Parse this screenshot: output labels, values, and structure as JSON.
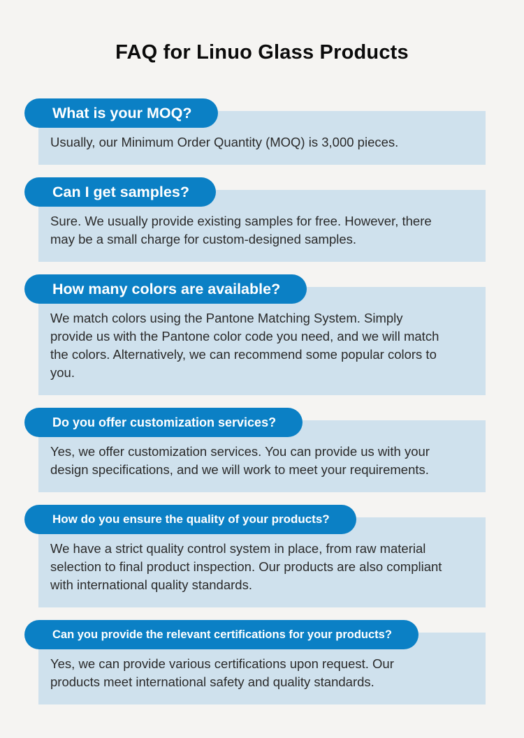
{
  "page": {
    "title": "FAQ for Linuo Glass Products"
  },
  "colors": {
    "page_background": "#f5f4f2",
    "question_pill_blue": "#0b80c5",
    "answer_box_blue": "#cfe1ed",
    "question_text": "#ffffff",
    "answer_text": "#2a2a2a",
    "title_text": "#0b0b0b"
  },
  "faqs": [
    {
      "question": "What is your MOQ?",
      "answer": "Usually, our Minimum Order Quantity (MOQ) is 3,000 pieces."
    },
    {
      "question": "Can I get samples?",
      "answer": "Sure. We usually provide existing samples for free. However, there\nmay be a small charge for custom-designed samples."
    },
    {
      "question": "How many colors are available?",
      "answer": "We match colors using the Pantone Matching System. Simply\nprovide us with the Pantone color code you need, and we will match\nthe colors. Alternatively, we can recommend some popular colors to\nyou."
    },
    {
      "question": "Do you offer customization services?",
      "answer": "Yes, we offer customization services. You can provide us with your\ndesign specifications, and we will work to meet your requirements."
    },
    {
      "question": "How do you ensure the quality of your products?",
      "answer": "We have a strict quality control system in place, from raw material\nselection to final product inspection. Our products are also compliant\nwith international quality standards."
    },
    {
      "question": "Can you provide the relevant certifications for your products?",
      "answer": "Yes, we can provide various certifications upon request. Our\nproducts meet international safety and quality standards."
    }
  ]
}
